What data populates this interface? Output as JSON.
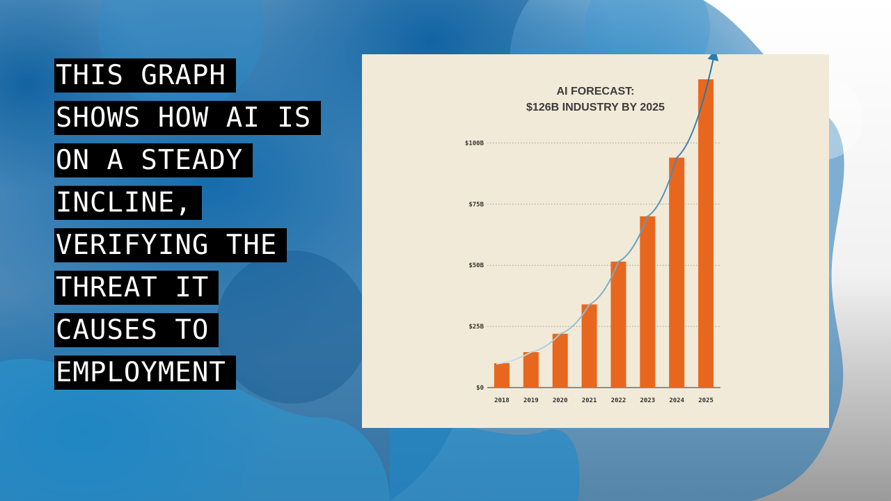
{
  "slide": {
    "caption_lines": [
      "THIS GRAPH",
      "SHOWS HOW AI IS",
      "ON A STEADY",
      "INCLINE,",
      "VERIFYING  THE",
      "THREAT IT",
      "CAUSES TO",
      "EMPLOYMENT"
    ]
  },
  "colors": {
    "bar": "#e8671e",
    "card": "#f2ead8",
    "trend": "#2b7bb0",
    "caption_bg": "#000000"
  },
  "chart_data": {
    "type": "bar",
    "title_lines": [
      "AI FORECAST:",
      "$126B INDUSTRY BY 2025"
    ],
    "categories": [
      "2018",
      "2019",
      "2020",
      "2021",
      "2022",
      "2023",
      "2024",
      "2025"
    ],
    "values": [
      10,
      14.5,
      22,
      34,
      51.5,
      70,
      94,
      126
    ],
    "ylim": [
      0,
      126
    ],
    "yticks": [
      0,
      25,
      50,
      75,
      100
    ],
    "ytick_labels": [
      "$0",
      "$25B",
      "$50B",
      "$75B",
      "$100B"
    ],
    "grid": true,
    "trend_arrow": true
  }
}
